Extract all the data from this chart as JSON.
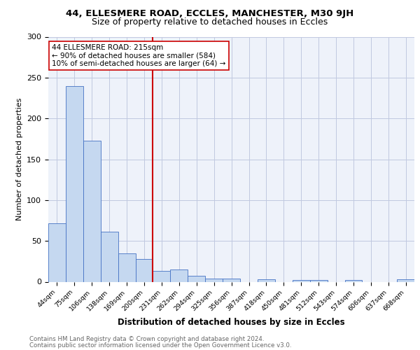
{
  "title1": "44, ELLESMERE ROAD, ECCLES, MANCHESTER, M30 9JH",
  "title2": "Size of property relative to detached houses in Eccles",
  "xlabel": "Distribution of detached houses by size in Eccles",
  "ylabel": "Number of detached properties",
  "bin_labels": [
    "44sqm",
    "75sqm",
    "106sqm",
    "138sqm",
    "169sqm",
    "200sqm",
    "231sqm",
    "262sqm",
    "294sqm",
    "325sqm",
    "356sqm",
    "387sqm",
    "418sqm",
    "450sqm",
    "481sqm",
    "512sqm",
    "543sqm",
    "574sqm",
    "606sqm",
    "637sqm",
    "668sqm"
  ],
  "bar_heights": [
    72,
    240,
    173,
    61,
    35,
    28,
    13,
    15,
    7,
    4,
    4,
    0,
    3,
    0,
    2,
    2,
    0,
    2,
    0,
    0,
    3
  ],
  "bar_color": "#c5d8f0",
  "bar_edge_color": "#4472c4",
  "vline_color": "#cc0000",
  "annotation_text": "44 ELLESMERE ROAD: 215sqm\n← 90% of detached houses are smaller (584)\n10% of semi-detached houses are larger (64) →",
  "annotation_box_color": "#ffffff",
  "annotation_box_edge": "#cc0000",
  "ylim": [
    0,
    300
  ],
  "yticks": [
    0,
    50,
    100,
    150,
    200,
    250,
    300
  ],
  "grid_color": "#c0c8e0",
  "background_color": "#eef2fa",
  "footer1": "Contains HM Land Registry data © Crown copyright and database right 2024.",
  "footer2": "Contains public sector information licensed under the Open Government Licence v3.0."
}
